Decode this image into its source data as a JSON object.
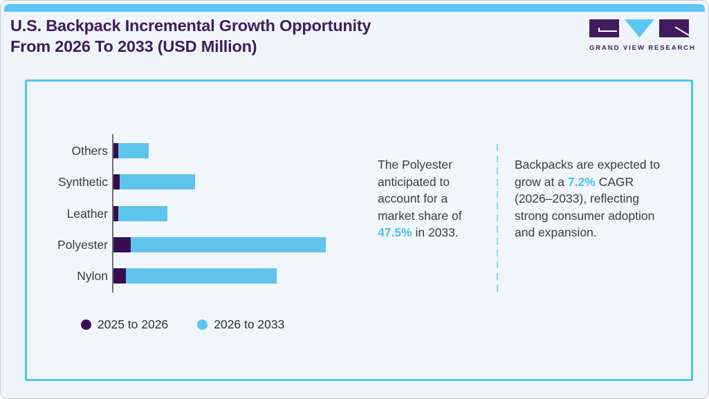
{
  "header": {
    "title_line1": "U.S. Backpack Incremental Growth Opportunity",
    "title_line2": "From 2026 To 2033 (USD Million)",
    "logo_text": "GRAND VIEW RESEARCH"
  },
  "chart_data": {
    "type": "bar",
    "orientation": "horizontal",
    "stacked": true,
    "title": "U.S. Backpack Incremental Growth Opportunity From 2026 To 2033 (USD Million)",
    "xlabel": "",
    "ylabel": "",
    "grid": false,
    "value_axis_labeled": false,
    "units_note": "value axis has no tick labels; values are estimated relative units where the longest stacked bar (Polyester) = 100",
    "categories": [
      "Others",
      "Synthetic",
      "Leather",
      "Polyester",
      "Nylon"
    ],
    "series": [
      {
        "name": "2025 to 2026",
        "color": "#390e50",
        "values": [
          2.3,
          2.9,
          2.3,
          8.1,
          5.9
        ]
      },
      {
        "name": "2026 to 2033",
        "color": "#5ec4ec",
        "values": [
          14.3,
          35.5,
          23.1,
          91.9,
          71.0
        ]
      }
    ],
    "legend_position": "bottom-left"
  },
  "annotations": {
    "middle": {
      "pre": "The Polyester anticipated to account for a market share of ",
      "highlight": "47.5%",
      "post": " in 2033."
    },
    "right": {
      "pre": "Backpacks are expected to grow at a ",
      "highlight": "7.2%",
      "post": " CAGR (2026–2033), reflecting strong consumer adoption and expansion."
    }
  },
  "colors": {
    "accent_blue": "#5bc8f3",
    "panel_border_blue": "#4fc4f0",
    "bar_blue": "#5ec4ec",
    "bar_purple": "#390e50",
    "title_purple": "#421a5e",
    "highlight_blue": "#4fc0ec",
    "background": "#eff5fa",
    "body_text": "#3b3b42",
    "axis_gray": "#6f6f6f"
  }
}
